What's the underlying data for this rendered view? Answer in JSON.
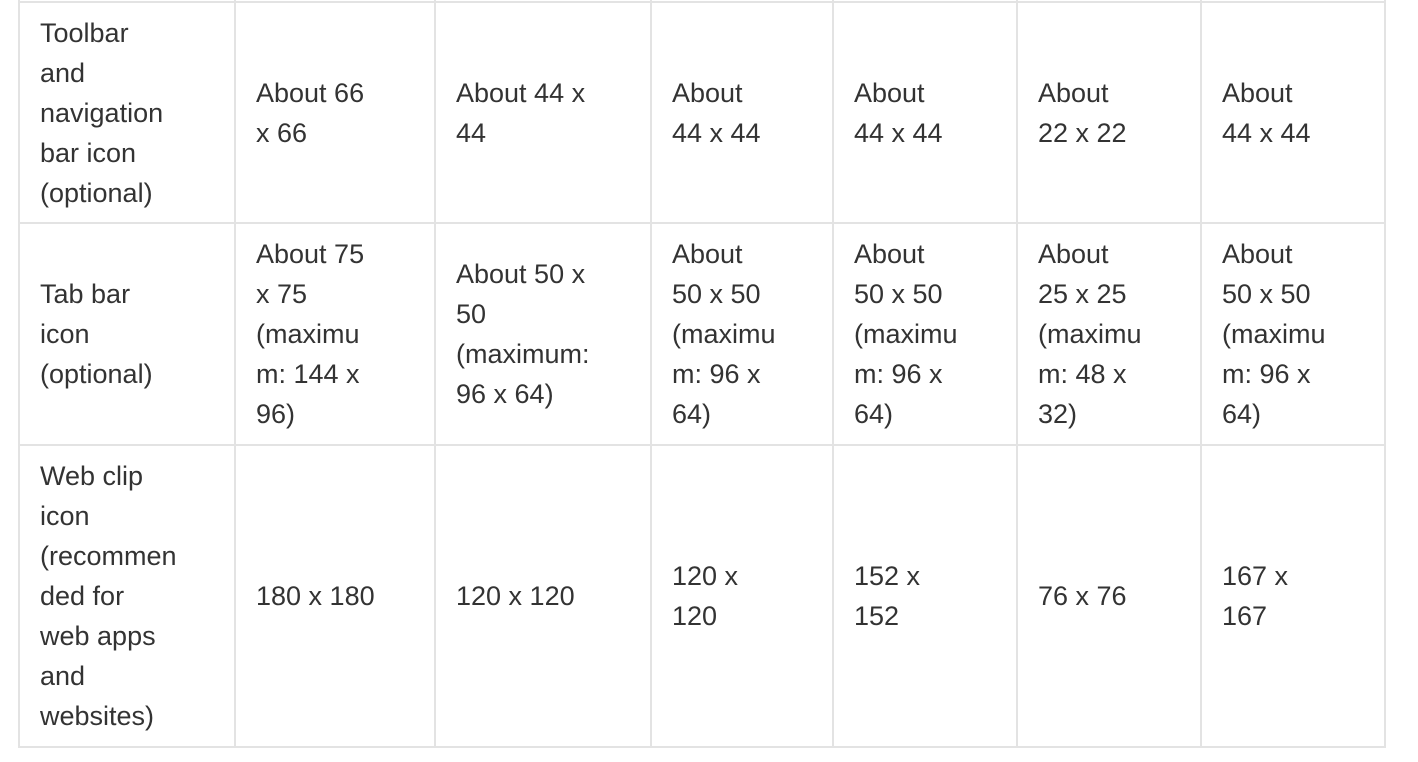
{
  "table": {
    "rows": [
      {
        "label_lines": [
          "Toolbar",
          "and",
          "navigation",
          "bar icon",
          "(optional)"
        ],
        "cells": [
          [
            "About 66",
            "x 66"
          ],
          [
            "About 44 x",
            "44"
          ],
          [
            "About",
            "44 x 44"
          ],
          [
            "About",
            "44 x 44"
          ],
          [
            "About",
            "22 x 22"
          ],
          [
            "About",
            "44 x 44"
          ]
        ]
      },
      {
        "label_lines": [
          "Tab bar",
          "icon",
          "(optional)"
        ],
        "cells": [
          [
            "About 75",
            "x 75",
            "(maximu",
            "m: 144 x",
            "96)"
          ],
          [
            "About 50 x",
            "50",
            "(maximum:",
            "96 x 64)"
          ],
          [
            "About",
            "50 x 50",
            "(maximu",
            "m: 96 x",
            "64)"
          ],
          [
            "About",
            "50 x 50",
            "(maximu",
            "m: 96 x",
            "64)"
          ],
          [
            "About",
            "25 x 25",
            "(maximu",
            "m: 48 x",
            "32)"
          ],
          [
            "About",
            "50 x 50",
            "(maximu",
            "m: 96 x",
            "64)"
          ]
        ]
      },
      {
        "label_lines": [
          "Web clip",
          "icon",
          "(recommen",
          "ded for",
          "web apps",
          "and",
          "websites)"
        ],
        "cells": [
          [
            "180 x 180"
          ],
          [
            "120 x 120"
          ],
          [
            "120 x",
            "120"
          ],
          [
            "152 x",
            "152"
          ],
          [
            "76 x 76"
          ],
          [
            "167 x",
            "167"
          ]
        ]
      }
    ]
  }
}
